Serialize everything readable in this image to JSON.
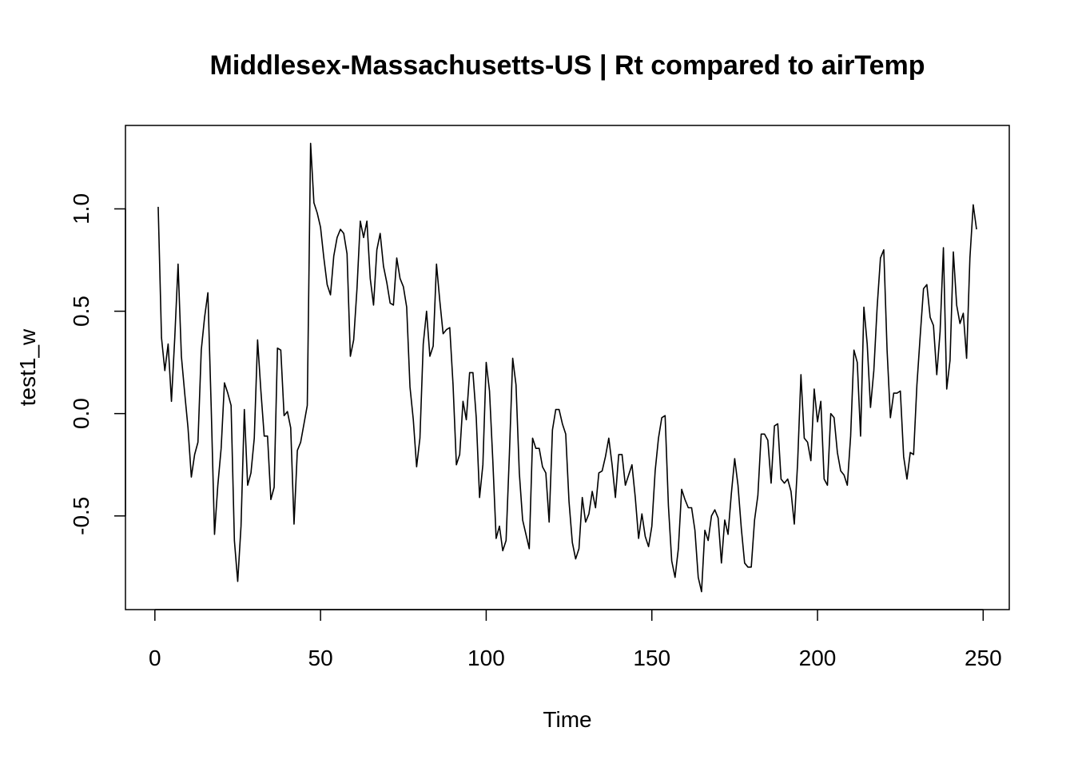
{
  "chart_data": {
    "type": "line",
    "title": "Middlesex-Massachusetts-US | Rt compared to airTemp",
    "xlabel": "Time",
    "ylabel": "test1_w",
    "xlim": [
      1,
      248
    ],
    "ylim": [
      -0.87,
      1.32
    ],
    "x_ticks": [
      0,
      50,
      100,
      150,
      200,
      250
    ],
    "x_tick_labels": [
      "0",
      "50",
      "100",
      "150",
      "200",
      "250"
    ],
    "y_ticks": [
      -0.5,
      0.0,
      0.5,
      1.0
    ],
    "y_tick_labels": [
      "-0.5",
      "0.0",
      "0.5",
      "1.0"
    ],
    "grid": false,
    "legend": "none",
    "line_color": "#000000",
    "series": [
      {
        "x_start": 1,
        "x_step": 1,
        "values": [
          1.01,
          0.37,
          0.21,
          0.34,
          0.06,
          0.37,
          0.73,
          0.28,
          0.1,
          -0.07,
          -0.31,
          -0.2,
          -0.14,
          0.31,
          0.47,
          0.59,
          0.03,
          -0.59,
          -0.35,
          -0.17,
          0.15,
          0.1,
          0.04,
          -0.62,
          -0.82,
          -0.55,
          0.02,
          -0.35,
          -0.29,
          -0.12,
          0.36,
          0.11,
          -0.11,
          -0.11,
          -0.42,
          -0.36,
          0.32,
          0.31,
          -0.01,
          0.01,
          -0.07,
          -0.54,
          -0.18,
          -0.14,
          -0.05,
          0.04,
          1.32,
          1.03,
          0.98,
          0.91,
          0.76,
          0.63,
          0.58,
          0.77,
          0.86,
          0.9,
          0.88,
          0.78,
          0.28,
          0.36,
          0.61,
          0.94,
          0.86,
          0.94,
          0.66,
          0.53,
          0.8,
          0.88,
          0.72,
          0.64,
          0.54,
          0.53,
          0.76,
          0.66,
          0.62,
          0.52,
          0.13,
          -0.03,
          -0.26,
          -0.12,
          0.34,
          0.5,
          0.28,
          0.33,
          0.73,
          0.55,
          0.39,
          0.41,
          0.42,
          0.14,
          -0.25,
          -0.2,
          0.06,
          -0.03,
          0.2,
          0.2,
          -0.02,
          -0.41,
          -0.25,
          0.25,
          0.11,
          -0.23,
          -0.61,
          -0.55,
          -0.67,
          -0.62,
          -0.2,
          0.27,
          0.14,
          -0.29,
          -0.52,
          -0.59,
          -0.66,
          -0.12,
          -0.17,
          -0.17,
          -0.26,
          -0.29,
          -0.53,
          -0.08,
          0.02,
          0.02,
          -0.05,
          -0.1,
          -0.43,
          -0.63,
          -0.71,
          -0.66,
          -0.41,
          -0.53,
          -0.49,
          -0.38,
          -0.46,
          -0.29,
          -0.28,
          -0.21,
          -0.12,
          -0.25,
          -0.41,
          -0.2,
          -0.2,
          -0.35,
          -0.3,
          -0.25,
          -0.41,
          -0.61,
          -0.49,
          -0.6,
          -0.65,
          -0.55,
          -0.28,
          -0.12,
          -0.02,
          -0.01,
          -0.45,
          -0.72,
          -0.8,
          -0.66,
          -0.37,
          -0.42,
          -0.46,
          -0.46,
          -0.57,
          -0.8,
          -0.87,
          -0.57,
          -0.62,
          -0.5,
          -0.47,
          -0.51,
          -0.73,
          -0.52,
          -0.59,
          -0.39,
          -0.22,
          -0.35,
          -0.56,
          -0.73,
          -0.75,
          -0.75,
          -0.52,
          -0.4,
          -0.1,
          -0.1,
          -0.13,
          -0.34,
          -0.06,
          -0.05,
          -0.32,
          -0.34,
          -0.32,
          -0.38,
          -0.54,
          -0.24,
          0.19,
          -0.12,
          -0.14,
          -0.23,
          0.12,
          -0.04,
          0.06,
          -0.32,
          -0.35,
          0.0,
          -0.02,
          -0.19,
          -0.28,
          -0.3,
          -0.35,
          -0.11,
          0.31,
          0.25,
          -0.11,
          0.52,
          0.34,
          0.03,
          0.21,
          0.52,
          0.76,
          0.8,
          0.31,
          -0.02,
          0.1,
          0.1,
          0.11,
          -0.21,
          -0.32,
          -0.19,
          -0.2,
          0.14,
          0.38,
          0.61,
          0.63,
          0.47,
          0.43,
          0.19,
          0.4,
          0.81,
          0.12,
          0.26,
          0.79,
          0.53,
          0.44,
          0.49,
          0.27,
          0.76,
          1.02,
          0.9
        ]
      }
    ]
  }
}
